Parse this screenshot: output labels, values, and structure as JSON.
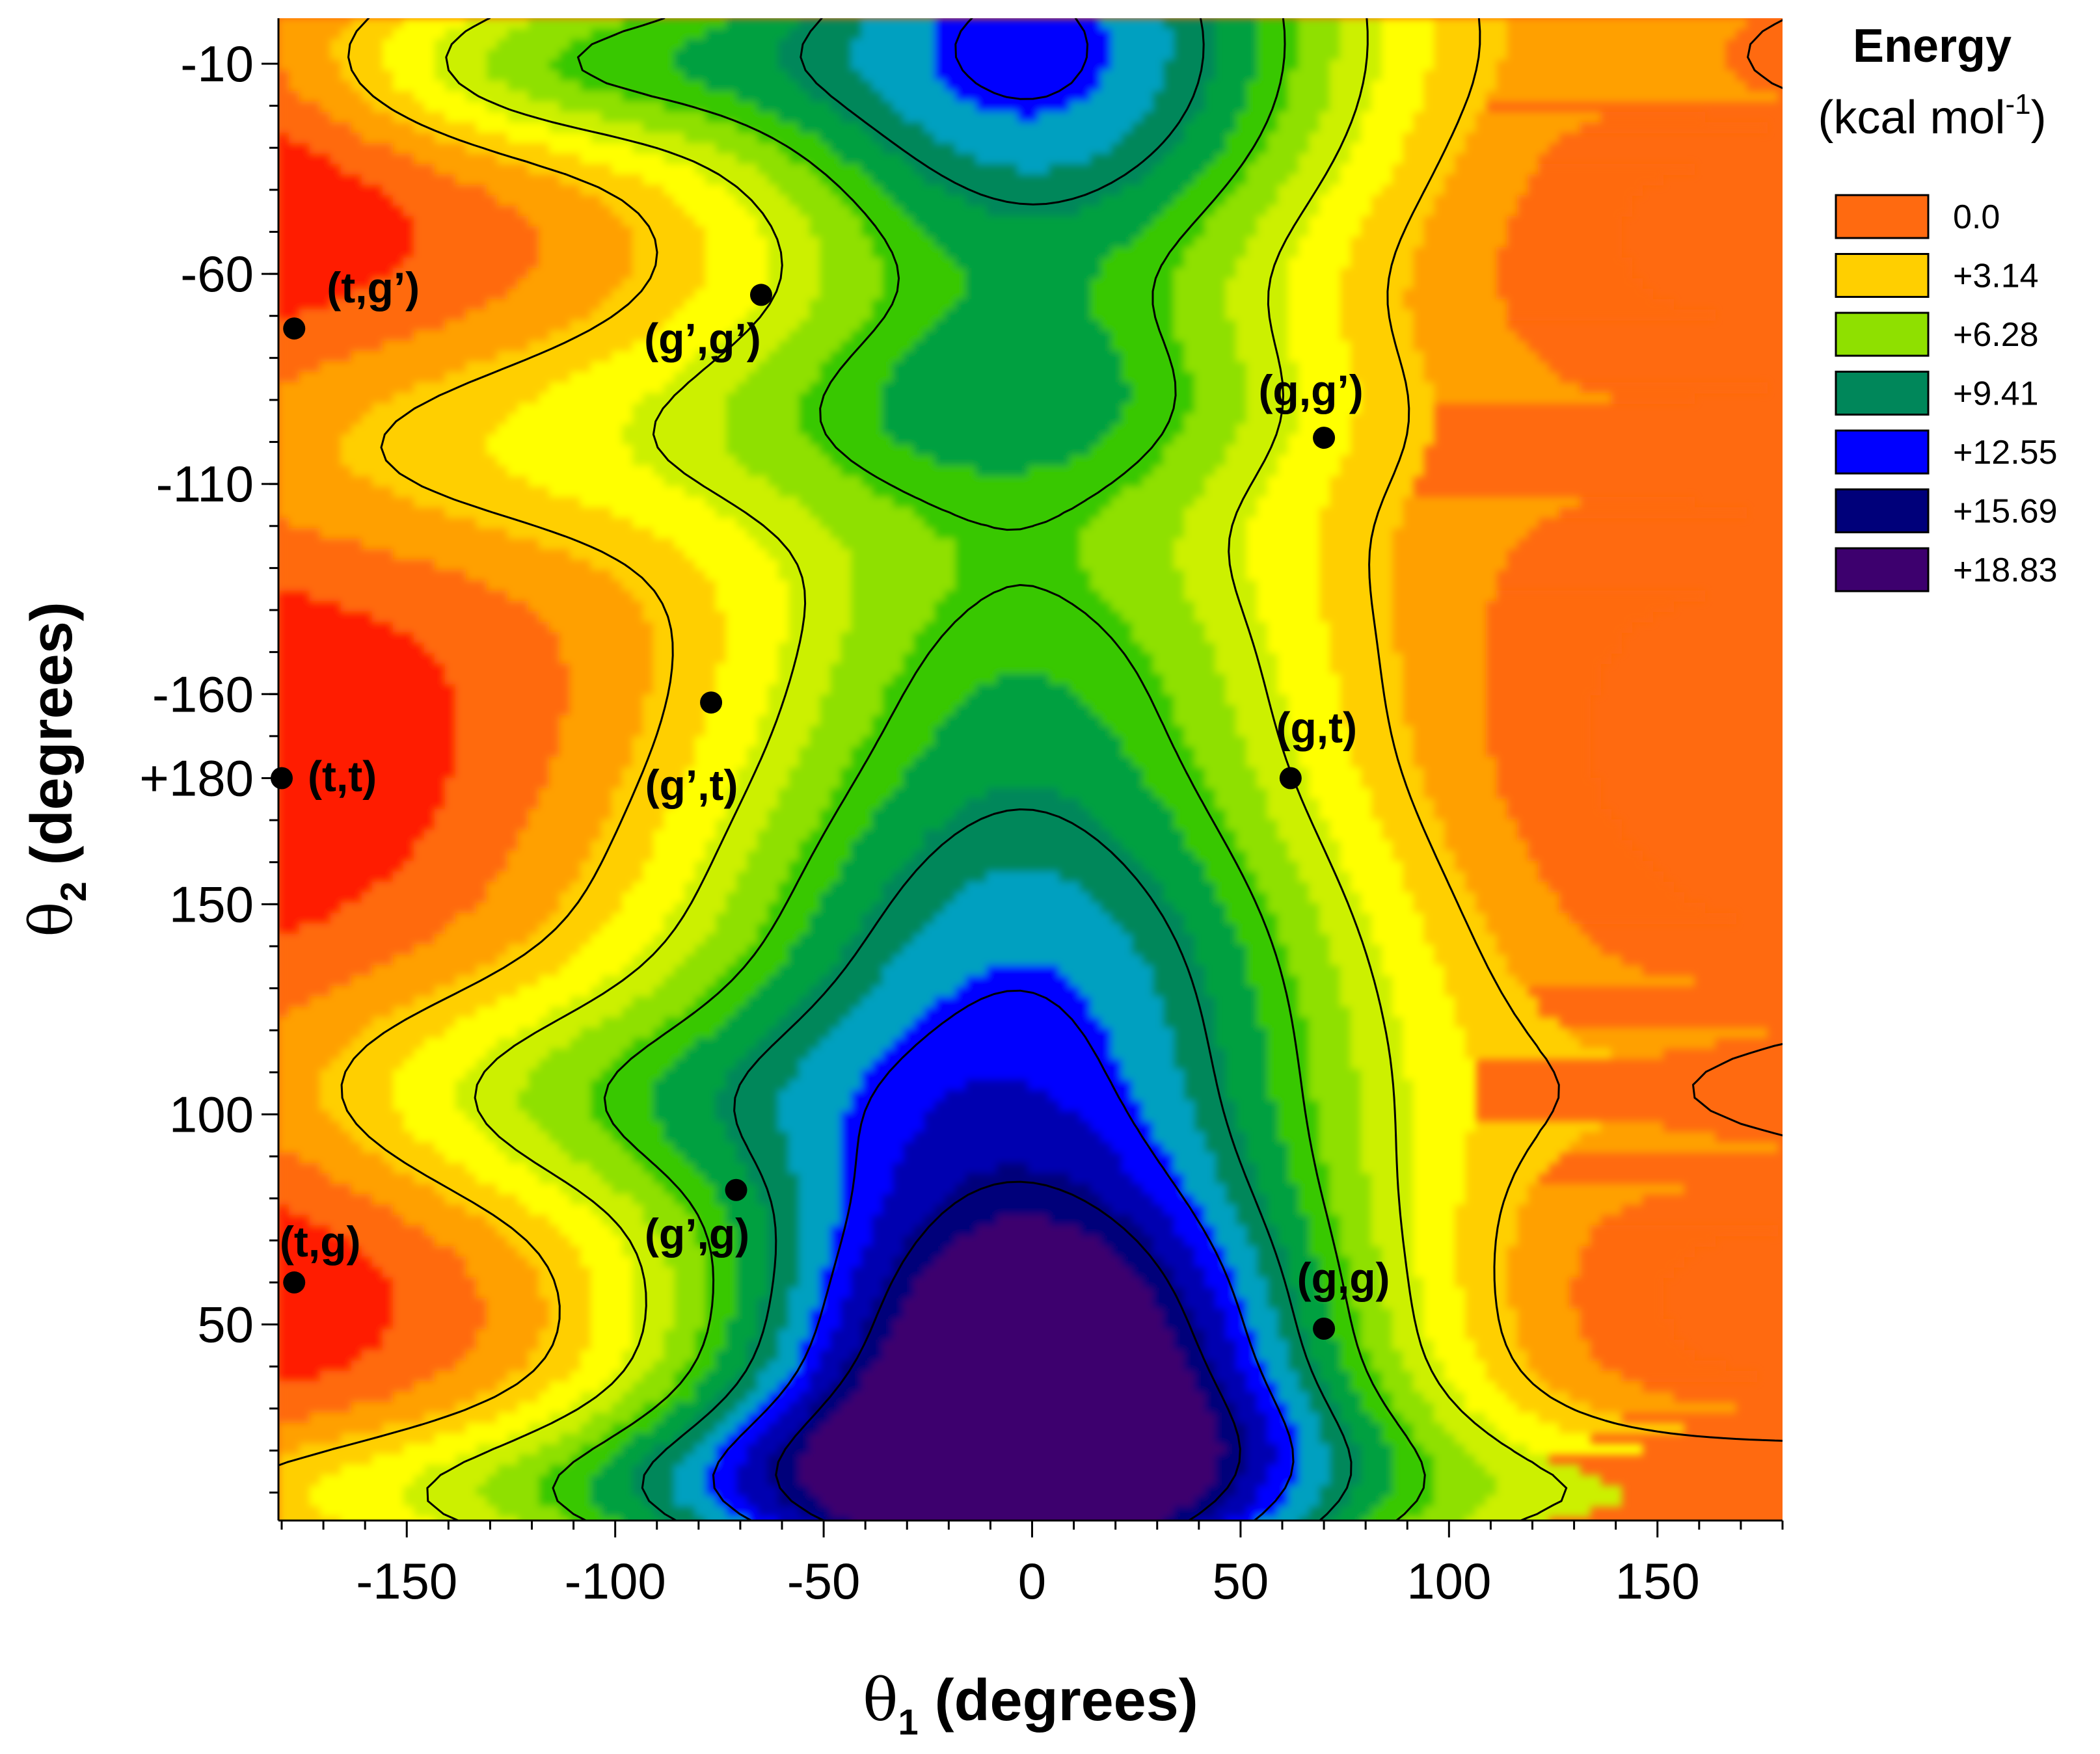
{
  "chart_data": {
    "type": "heatmap",
    "subtype": "filled contour energy map",
    "xlabel": {
      "symbol": "θ",
      "sub": "1",
      "text": " (degrees)"
    },
    "ylabel": {
      "symbol": "θ",
      "sub": "2",
      "text": " (degrees)"
    },
    "x_range": [
      -180,
      180
    ],
    "x_ticks": [
      {
        "value": -150,
        "label": "-150"
      },
      {
        "value": -100,
        "label": "-100"
      },
      {
        "value": -50,
        "label": "-50"
      },
      {
        "value": 0,
        "label": "0"
      },
      {
        "value": 50,
        "label": "50"
      },
      {
        "value": 100,
        "label": "100"
      },
      {
        "value": 150,
        "label": "150"
      }
    ],
    "y_axis_note": "wrapped dihedral axis, top to bottom: -10 ... -180/+180 ... 0",
    "y_ticks": [
      {
        "value": -10,
        "label": "-10"
      },
      {
        "value": -60,
        "label": "-60"
      },
      {
        "value": -110,
        "label": "-110"
      },
      {
        "value": -160,
        "label": "-160"
      },
      {
        "value": 180,
        "label": "+180"
      },
      {
        "value": 150,
        "label": "150"
      },
      {
        "value": 100,
        "label": "100"
      },
      {
        "value": 50,
        "label": "50"
      }
    ],
    "legend": {
      "title": "Energy",
      "unit_main": "(kcal mol",
      "unit_sup": "-1",
      "unit_end": ")",
      "position": "top-right",
      "entries": [
        {
          "label": "0.0",
          "value": 0.0,
          "color": "#ff6a10"
        },
        {
          "label": "+3.14",
          "value": 3.14,
          "color": "#ffcf00"
        },
        {
          "label": "+6.28",
          "value": 6.28,
          "color": "#8fe000"
        },
        {
          "label": "+9.41",
          "value": 9.41,
          "color": "#00875a"
        },
        {
          "label": "+12.55",
          "value": 12.55,
          "color": "#0000ff"
        },
        {
          "label": "+15.69",
          "value": 15.69,
          "color": "#00007a"
        },
        {
          "label": "+18.83",
          "value": 18.83,
          "color": "#3d006e"
        }
      ]
    },
    "colorscale": [
      "#ff1a00",
      "#ff6a10",
      "#ffa000",
      "#ffcf00",
      "#ffff00",
      "#ccf000",
      "#8fe000",
      "#38c800",
      "#00a040",
      "#00875a",
      "#00a0c0",
      "#0000ff",
      "#0000b0",
      "#00007a",
      "#3d006e"
    ],
    "conformers": [
      {
        "label": "(t,g’)",
        "theta1": -177,
        "theta2": -73
      },
      {
        "label": "(g’,g’)",
        "theta1": -65,
        "theta2": -65
      },
      {
        "label": "(g,g’)",
        "theta1": 70,
        "theta2": -99
      },
      {
        "label": "(g’,t)",
        "theta1": -77,
        "theta2": -162
      },
      {
        "label": "(t,t)",
        "theta1": -180,
        "theta2": 180
      },
      {
        "label": "(g,t)",
        "theta1": 62,
        "theta2": 180
      },
      {
        "label": "(t,g)",
        "theta1": -177,
        "theta2": 60
      },
      {
        "label": "(g’,g)",
        "theta1": -71,
        "theta2": 82
      },
      {
        "label": "(g,g)",
        "theta1": 70,
        "theta2": 49
      }
    ]
  }
}
